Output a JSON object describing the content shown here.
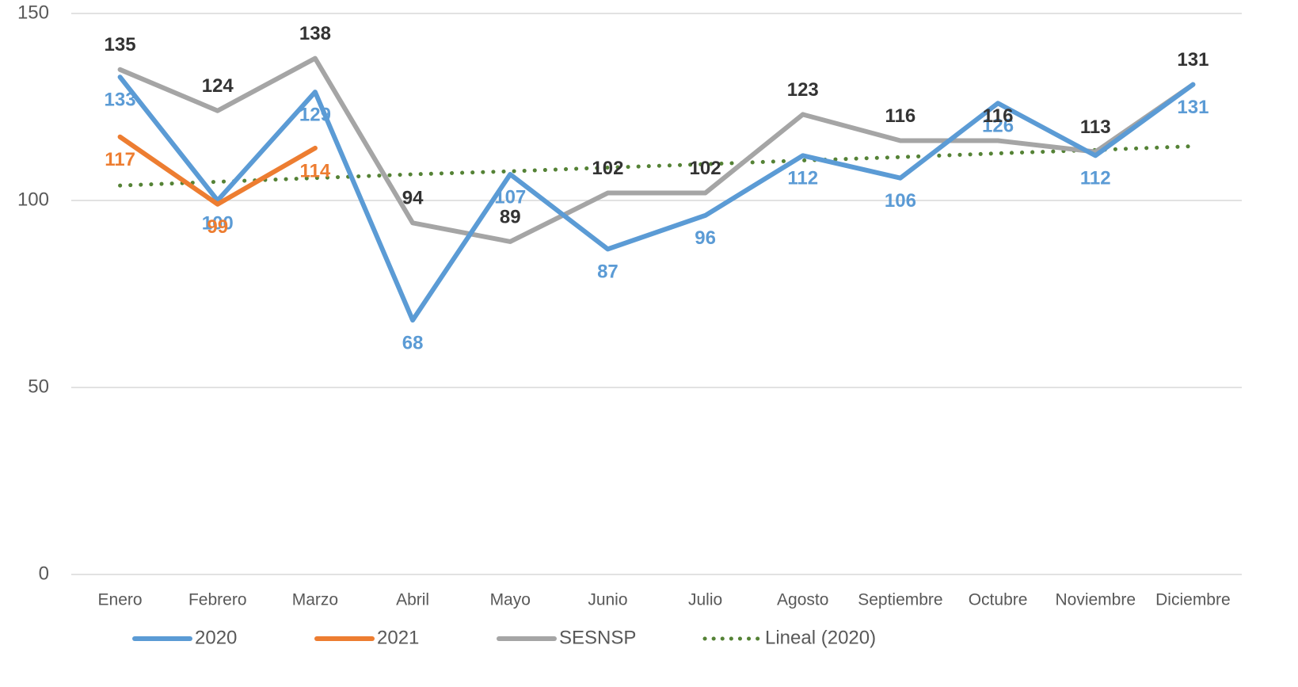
{
  "chart_data": {
    "type": "line",
    "categories": [
      "Enero",
      "Febrero",
      "Marzo",
      "Abril",
      "Mayo",
      "Junio",
      "Julio",
      "Agosto",
      "Septiembre",
      "Octubre",
      "Noviembre",
      "Diciembre"
    ],
    "series": [
      {
        "name": "2020",
        "color": "#5b9bd5",
        "label_color": "#5b9bd5",
        "values": [
          133,
          100,
          129,
          68,
          107,
          87,
          96,
          112,
          106,
          126,
          112,
          131
        ]
      },
      {
        "name": "2021",
        "color": "#ed7d31",
        "label_color": "#ed7d31",
        "values": [
          117,
          99,
          114,
          null,
          null,
          null,
          null,
          null,
          null,
          null,
          null,
          null
        ]
      },
      {
        "name": "SESNSP",
        "color": "#a5a5a5",
        "label_color": "#333333",
        "values": [
          135,
          124,
          138,
          94,
          89,
          102,
          102,
          123,
          116,
          116,
          113,
          131
        ]
      },
      {
        "name": "Lineal (2020)",
        "color": "#548235",
        "dotted": true,
        "values": [
          104,
          105,
          106,
          107,
          107.8,
          108.8,
          109.7,
          110.7,
          111.6,
          112.6,
          113.5,
          114.5
        ]
      }
    ],
    "ylim": [
      0,
      150
    ],
    "yticks": [
      0,
      50,
      100,
      150
    ],
    "grid": true,
    "legend": "bottom"
  }
}
